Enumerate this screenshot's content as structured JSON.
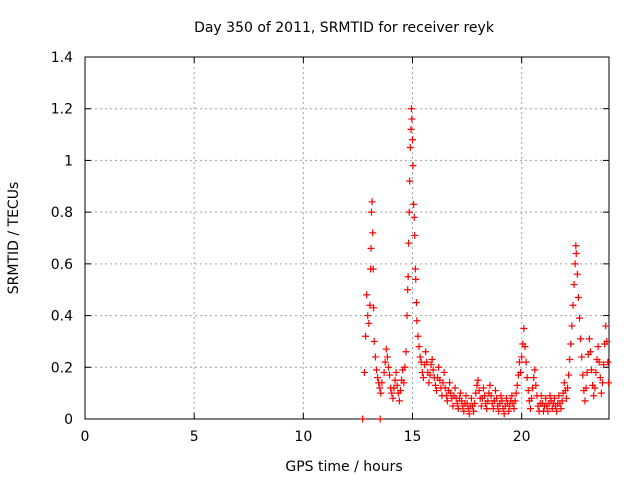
{
  "chart_data": {
    "type": "scatter",
    "title": "Day 350 of 2011, SRMTID for receiver reyk",
    "xlabel": "GPS time / hours",
    "ylabel": "SRMTID / TECUs",
    "xlim": [
      0,
      24
    ],
    "ylim": [
      0,
      1.4
    ],
    "x_ticks": [
      0,
      5,
      10,
      15,
      20
    ],
    "x_tick_labels": [
      "0",
      "5",
      "10",
      "15",
      "20"
    ],
    "y_ticks": [
      0,
      0.2,
      0.4,
      0.6,
      0.8,
      1.0,
      1.2,
      1.4
    ],
    "y_tick_labels": [
      "0",
      "0.2",
      "0.4",
      "0.6",
      "0.8",
      "1",
      "1.2",
      "1.4"
    ],
    "grid": true,
    "legend": "none",
    "marker": "+",
    "series": [
      {
        "name": "SRMTID",
        "color": "#ff0000",
        "points": [
          [
            12.72,
            0.0
          ],
          [
            13.52,
            0.0
          ],
          [
            12.8,
            0.18
          ],
          [
            12.85,
            0.32
          ],
          [
            12.9,
            0.48
          ],
          [
            12.95,
            0.4
          ],
          [
            13.0,
            0.37
          ],
          [
            13.05,
            0.44
          ],
          [
            13.08,
            0.58
          ],
          [
            13.1,
            0.66
          ],
          [
            13.12,
            0.8
          ],
          [
            13.15,
            0.84
          ],
          [
            13.18,
            0.72
          ],
          [
            13.2,
            0.58
          ],
          [
            13.22,
            0.43
          ],
          [
            13.25,
            0.3
          ],
          [
            13.3,
            0.24
          ],
          [
            13.35,
            0.19
          ],
          [
            13.4,
            0.16
          ],
          [
            13.45,
            0.14
          ],
          [
            13.5,
            0.12
          ],
          [
            13.55,
            0.1
          ],
          [
            13.6,
            0.14
          ],
          [
            13.7,
            0.18
          ],
          [
            13.75,
            0.22
          ],
          [
            13.8,
            0.27
          ],
          [
            13.85,
            0.24
          ],
          [
            13.9,
            0.2
          ],
          [
            13.95,
            0.17
          ],
          [
            14.0,
            0.12
          ],
          [
            14.05,
            0.1
          ],
          [
            14.1,
            0.08
          ],
          [
            14.15,
            0.12
          ],
          [
            14.2,
            0.15
          ],
          [
            14.25,
            0.18
          ],
          [
            14.3,
            0.13
          ],
          [
            14.35,
            0.1
          ],
          [
            14.4,
            0.07
          ],
          [
            14.45,
            0.11
          ],
          [
            14.5,
            0.15
          ],
          [
            14.55,
            0.19
          ],
          [
            14.6,
            0.14
          ],
          [
            14.65,
            0.2
          ],
          [
            14.7,
            0.26
          ],
          [
            14.75,
            0.4
          ],
          [
            14.78,
            0.5
          ],
          [
            14.8,
            0.55
          ],
          [
            14.82,
            0.68
          ],
          [
            14.85,
            0.8
          ],
          [
            14.87,
            0.92
          ],
          [
            14.9,
            1.05
          ],
          [
            14.93,
            1.12
          ],
          [
            14.95,
            1.2
          ],
          [
            14.97,
            1.16
          ],
          [
            15.0,
            1.08
          ],
          [
            15.02,
            0.98
          ],
          [
            15.05,
            0.83
          ],
          [
            15.08,
            0.78
          ],
          [
            15.1,
            0.71
          ],
          [
            15.13,
            0.58
          ],
          [
            15.15,
            0.54
          ],
          [
            15.18,
            0.45
          ],
          [
            15.2,
            0.38
          ],
          [
            15.25,
            0.32
          ],
          [
            15.3,
            0.28
          ],
          [
            15.35,
            0.24
          ],
          [
            15.4,
            0.22
          ],
          [
            15.45,
            0.18
          ],
          [
            15.5,
            0.16
          ],
          [
            15.55,
            0.21
          ],
          [
            15.6,
            0.26
          ],
          [
            15.65,
            0.22
          ],
          [
            15.7,
            0.18
          ],
          [
            15.75,
            0.14
          ],
          [
            15.8,
            0.17
          ],
          [
            15.85,
            0.21
          ],
          [
            15.9,
            0.23
          ],
          [
            15.95,
            0.19
          ],
          [
            16.0,
            0.16
          ],
          [
            16.05,
            0.13
          ],
          [
            16.1,
            0.11
          ],
          [
            16.15,
            0.16
          ],
          [
            16.2,
            0.2
          ],
          [
            16.25,
            0.15
          ],
          [
            16.3,
            0.12
          ],
          [
            16.35,
            0.09
          ],
          [
            16.4,
            0.14
          ],
          [
            16.45,
            0.18
          ],
          [
            16.5,
            0.12
          ],
          [
            16.55,
            0.09
          ],
          [
            16.6,
            0.07
          ],
          [
            16.65,
            0.11
          ],
          [
            16.7,
            0.14
          ],
          [
            16.75,
            0.1
          ],
          [
            16.8,
            0.08
          ],
          [
            16.85,
            0.05
          ],
          [
            16.9,
            0.09
          ],
          [
            16.95,
            0.12
          ],
          [
            17.0,
            0.08
          ],
          [
            17.05,
            0.06
          ],
          [
            17.1,
            0.04
          ],
          [
            17.15,
            0.08
          ],
          [
            17.2,
            0.1
          ],
          [
            17.25,
            0.07
          ],
          [
            17.3,
            0.05
          ],
          [
            17.35,
            0.03
          ],
          [
            17.4,
            0.06
          ],
          [
            17.45,
            0.09
          ],
          [
            17.5,
            0.06
          ],
          [
            17.55,
            0.04
          ],
          [
            17.6,
            0.02
          ],
          [
            17.65,
            0.05
          ],
          [
            17.7,
            0.08
          ],
          [
            17.75,
            0.05
          ],
          [
            17.8,
            0.03
          ],
          [
            17.85,
            0.06
          ],
          [
            17.9,
            0.1
          ],
          [
            17.95,
            0.13
          ],
          [
            18.0,
            0.15
          ],
          [
            18.05,
            0.11
          ],
          [
            18.1,
            0.08
          ],
          [
            18.15,
            0.05
          ],
          [
            18.2,
            0.08
          ],
          [
            18.25,
            0.12
          ],
          [
            18.3,
            0.09
          ],
          [
            18.35,
            0.06
          ],
          [
            18.4,
            0.04
          ],
          [
            18.45,
            0.07
          ],
          [
            18.5,
            0.1
          ],
          [
            18.55,
            0.13
          ],
          [
            18.6,
            0.09
          ],
          [
            18.65,
            0.06
          ],
          [
            18.7,
            0.04
          ],
          [
            18.75,
            0.07
          ],
          [
            18.8,
            0.11
          ],
          [
            18.85,
            0.08
          ],
          [
            18.9,
            0.05
          ],
          [
            18.95,
            0.03
          ],
          [
            19.0,
            0.06
          ],
          [
            19.05,
            0.09
          ],
          [
            19.1,
            0.07
          ],
          [
            19.15,
            0.04
          ],
          [
            19.2,
            0.02
          ],
          [
            19.25,
            0.05
          ],
          [
            19.3,
            0.08
          ],
          [
            19.35,
            0.06
          ],
          [
            19.4,
            0.03
          ],
          [
            19.45,
            0.05
          ],
          [
            19.5,
            0.07
          ],
          [
            19.55,
            0.09
          ],
          [
            19.6,
            0.06
          ],
          [
            19.65,
            0.04
          ],
          [
            19.7,
            0.07
          ],
          [
            19.75,
            0.1
          ],
          [
            19.8,
            0.13
          ],
          [
            19.85,
            0.17
          ],
          [
            19.9,
            0.22
          ],
          [
            19.95,
            0.18
          ],
          [
            20.0,
            0.24
          ],
          [
            20.05,
            0.29
          ],
          [
            20.1,
            0.35
          ],
          [
            20.15,
            0.28
          ],
          [
            20.2,
            0.22
          ],
          [
            20.25,
            0.16
          ],
          [
            20.3,
            0.11
          ],
          [
            20.35,
            0.07
          ],
          [
            20.4,
            0.04
          ],
          [
            20.45,
            0.08
          ],
          [
            20.5,
            0.12
          ],
          [
            20.55,
            0.16
          ],
          [
            20.6,
            0.19
          ],
          [
            20.65,
            0.13
          ],
          [
            20.7,
            0.09
          ],
          [
            20.75,
            0.05
          ],
          [
            20.8,
            0.03
          ],
          [
            20.85,
            0.06
          ],
          [
            20.9,
            0.09
          ],
          [
            20.95,
            0.06
          ],
          [
            21.0,
            0.03
          ],
          [
            21.05,
            0.05
          ],
          [
            21.1,
            0.08
          ],
          [
            21.15,
            0.05
          ],
          [
            21.2,
            0.03
          ],
          [
            21.25,
            0.06
          ],
          [
            21.3,
            0.09
          ],
          [
            21.35,
            0.07
          ],
          [
            21.4,
            0.04
          ],
          [
            21.45,
            0.06
          ],
          [
            21.5,
            0.08
          ],
          [
            21.55,
            0.05
          ],
          [
            21.6,
            0.03
          ],
          [
            21.65,
            0.06
          ],
          [
            21.7,
            0.09
          ],
          [
            21.75,
            0.06
          ],
          [
            21.8,
            0.04
          ],
          [
            21.85,
            0.07
          ],
          [
            21.9,
            0.1
          ],
          [
            21.95,
            0.14
          ],
          [
            22.0,
            0.11
          ],
          [
            22.05,
            0.08
          ],
          [
            22.1,
            0.12
          ],
          [
            22.15,
            0.17
          ],
          [
            22.2,
            0.23
          ],
          [
            22.25,
            0.29
          ],
          [
            22.3,
            0.36
          ],
          [
            22.35,
            0.44
          ],
          [
            22.4,
            0.52
          ],
          [
            22.45,
            0.6
          ],
          [
            22.48,
            0.67
          ],
          [
            22.5,
            0.64
          ],
          [
            22.55,
            0.56
          ],
          [
            22.6,
            0.47
          ],
          [
            22.65,
            0.39
          ],
          [
            22.7,
            0.31
          ],
          [
            22.75,
            0.24
          ],
          [
            22.8,
            0.17
          ],
          [
            22.85,
            0.11
          ],
          [
            22.9,
            0.07
          ],
          [
            22.95,
            0.12
          ],
          [
            23.0,
            0.18
          ],
          [
            23.05,
            0.25
          ],
          [
            23.1,
            0.31
          ],
          [
            23.15,
            0.26
          ],
          [
            23.2,
            0.19
          ],
          [
            23.25,
            0.13
          ],
          [
            23.3,
            0.09
          ],
          [
            23.35,
            0.12
          ],
          [
            23.4,
            0.18
          ],
          [
            23.45,
            0.23
          ],
          [
            23.5,
            0.28
          ],
          [
            23.55,
            0.22
          ],
          [
            23.6,
            0.16
          ],
          [
            23.65,
            0.1
          ],
          [
            23.7,
            0.14
          ],
          [
            23.75,
            0.21
          ],
          [
            23.8,
            0.29
          ],
          [
            23.85,
            0.36
          ],
          [
            23.9,
            0.3
          ],
          [
            23.95,
            0.22
          ],
          [
            23.98,
            0.14
          ]
        ]
      }
    ]
  }
}
